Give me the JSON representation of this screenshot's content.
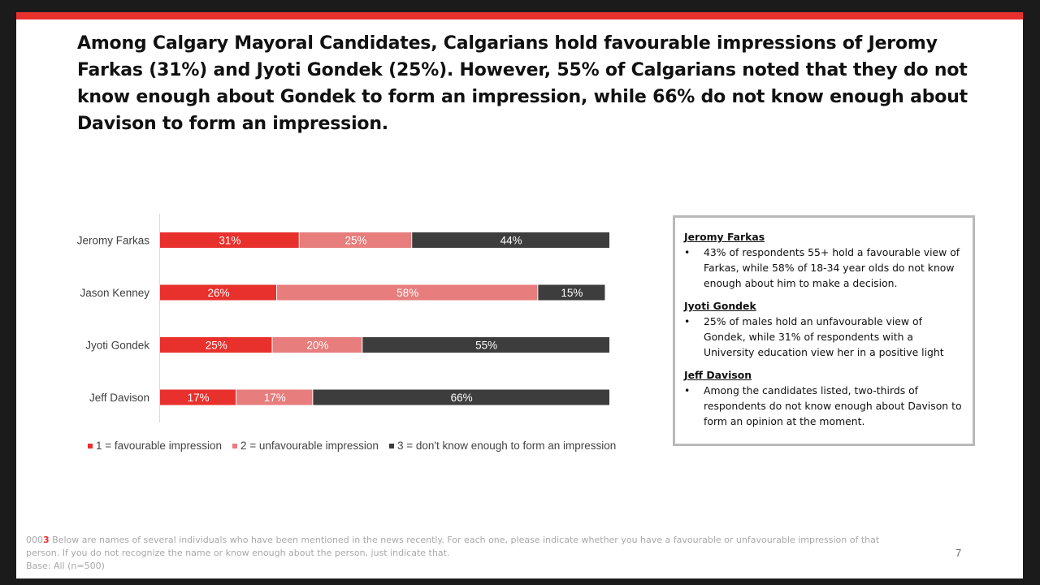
{
  "headline": "Among Calgary Mayoral Candidates, Calgarians hold favourable impressions of Jeromy Farkas (31%) and Jyoti Gondek (25%). However, 55% of Calgarians noted that they do not know enough about Gondek to form an impression, while 66% do not know enough about Davison to form an impression.",
  "colors": {
    "accent": "#e8302d",
    "favourable": "#e8302d",
    "unfavourable": "#e77d7d",
    "dont_know": "#3d3d3d",
    "box_border": "#b9b9b9"
  },
  "chart_data": {
    "type": "bar",
    "orientation": "horizontal",
    "stacked": true,
    "categories": [
      "Jeromy Farkas",
      "Jason Kenney",
      "Jyoti Gondek",
      "Jeff Davison"
    ],
    "series": [
      {
        "name": "1 = favourable impression",
        "values": [
          31,
          26,
          25,
          17
        ],
        "labels": [
          "31%",
          "26%",
          "25%",
          "17%"
        ]
      },
      {
        "name": "2 = unfavourable impression",
        "values": [
          25,
          58,
          20,
          17
        ],
        "labels": [
          "25%",
          "58%",
          "20%",
          "17%"
        ]
      },
      {
        "name": "3 = don't know enough to form an impression",
        "values": [
          44,
          15,
          55,
          66
        ],
        "labels": [
          "44%",
          "15%",
          "55%",
          "66%"
        ]
      }
    ],
    "xlim": [
      0,
      100
    ],
    "grid": false,
    "legend_position": "bottom"
  },
  "notes": [
    {
      "title": "Jeromy Farkas",
      "bullet": " 43% of respondents 55+ hold a favourable view of Farkas, while 58% of 18-34 year olds do not know enough about him to make a decision."
    },
    {
      "title": "Jyoti Gondek",
      "bullet": "25% of males hold an unfavourable view of Gondek, while 31% of respondents with a University education view her in a positive light"
    },
    {
      "title": "Jeff Davison",
      "bullet": "Among the candidates listed, two-thirds of respondents do not know enough about Davison to form an opinion at the moment."
    }
  ],
  "footer": {
    "code_prefix": "000",
    "code_highlight": "3",
    "question": " Below are names of several individuals who have been mentioned in the news recently. For each one, please indicate whether you have a favourable or unfavourable impression of that person. If you do not recognize the name or know enough about the person, just indicate that.",
    "base": "Base: All (n=500)"
  },
  "page_number": "7"
}
